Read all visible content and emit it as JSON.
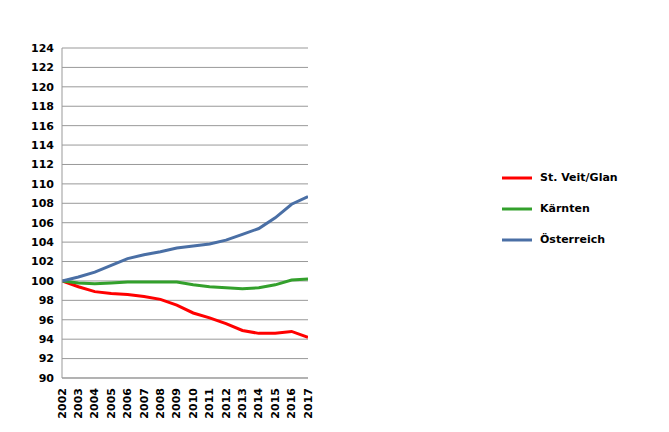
{
  "chart_data": {
    "type": "line",
    "x": [
      2002,
      2003,
      2004,
      2005,
      2006,
      2007,
      2008,
      2009,
      2010,
      2011,
      2012,
      2013,
      2014,
      2015,
      2016,
      2017
    ],
    "xlim": [
      2002,
      2017
    ],
    "xticks": [
      2002,
      2003,
      2004,
      2005,
      2006,
      2007,
      2008,
      2009,
      2010,
      2011,
      2012,
      2013,
      2014,
      2015,
      2016,
      2017
    ],
    "ylim": [
      90,
      124
    ],
    "yticks": [
      90,
      92,
      94,
      96,
      98,
      100,
      102,
      104,
      106,
      108,
      110,
      112,
      114,
      116,
      118,
      120,
      122,
      124
    ],
    "grid": true,
    "legend": "right",
    "series": [
      {
        "name": "St. Veit/Glan",
        "color": "#ff0000",
        "values": [
          100,
          99.4,
          98.9,
          98.7,
          98.6,
          98.4,
          98.1,
          97.5,
          96.7,
          96.2,
          95.6,
          94.9,
          94.6,
          94.6,
          94.8,
          94.2
        ]
      },
      {
        "name": "Kärnten",
        "color": "#33a02c",
        "values": [
          100,
          99.8,
          99.7,
          99.8,
          99.9,
          99.9,
          99.9,
          99.9,
          99.6,
          99.4,
          99.3,
          99.2,
          99.3,
          99.6,
          100.1,
          100.2
        ]
      },
      {
        "name": "Österreich",
        "color": "#4a6fa5",
        "values": [
          100,
          100.4,
          100.9,
          101.6,
          102.3,
          102.7,
          103.0,
          103.4,
          103.6,
          103.8,
          104.2,
          104.8,
          105.4,
          106.5,
          107.9,
          108.7
        ]
      }
    ]
  }
}
